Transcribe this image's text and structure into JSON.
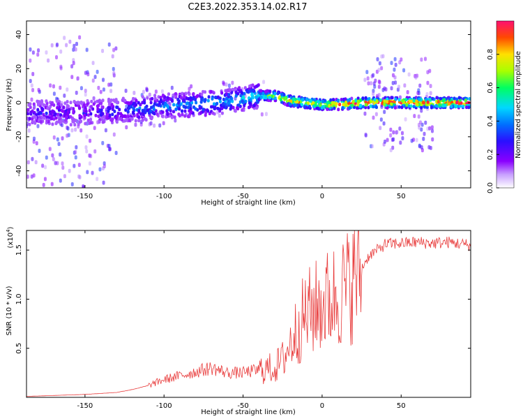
{
  "title": "C2E3.2022.353.14.02.R17",
  "colors": {
    "snr_line": "#e83a3a",
    "colormap": [
      "#ffffff",
      "#8a00ff",
      "#3a00ff",
      "#0050ff",
      "#00d8ff",
      "#00ff60",
      "#a0ff00",
      "#ffe000",
      "#ff5000",
      "#ff1060"
    ]
  },
  "chart_data": [
    {
      "type": "heatmap",
      "xlabel": "Height of straight line (km)",
      "ylabel": "Frequency (Hz)",
      "xlim": [
        -187,
        94
      ],
      "ylim": [
        -50,
        48
      ],
      "xticks": [
        -150,
        -100,
        -50,
        0,
        50
      ],
      "yticks": [
        -40,
        -20,
        0,
        20,
        40
      ],
      "colorbar": {
        "label": "Normalized spectral amplitude",
        "range": [
          0.0,
          1.0
        ],
        "ticks": [
          0.0,
          0.2,
          0.4,
          0.6,
          0.8
        ]
      },
      "trend": {
        "x": [
          -180,
          -150,
          -120,
          -100,
          -80,
          -60,
          -40,
          -30,
          -20,
          0,
          10,
          28,
          70,
          94
        ],
        "freq_hz": [
          -6,
          -6,
          -4,
          -2,
          -1,
          1,
          4,
          4,
          1,
          -1,
          -1,
          0,
          0,
          0
        ],
        "peak_amplitude": [
          0.3,
          0.3,
          0.4,
          0.45,
          0.5,
          0.5,
          0.6,
          0.8,
          0.9,
          0.9,
          0.95,
          1.0,
          1.0,
          1.0
        ]
      }
    },
    {
      "type": "line",
      "xlabel": "Height of straight line (km)",
      "ylabel": "SNR (10 * v/v)",
      "yscale_label": "(x10",
      "yscale_exp": "4",
      "yscale_suffix": ")",
      "xlim": [
        -187,
        94
      ],
      "ylim": [
        0,
        1.7
      ],
      "xticks": [
        -150,
        -100,
        -50,
        0,
        50
      ],
      "yticks": [
        0.5,
        1.0,
        1.5
      ],
      "yticklabels": [
        "0.5",
        "1.0",
        "1.5"
      ],
      "series": [
        {
          "x": [
            -187,
            -150,
            -130,
            -120,
            -110,
            -100,
            -90,
            -80,
            -70,
            -60,
            -50,
            -40,
            -30,
            -25,
            -20,
            -15,
            -10,
            -5,
            0,
            5,
            10,
            15,
            20,
            25,
            30,
            35,
            40,
            50,
            60,
            70,
            80,
            94
          ],
          "values": [
            0.01,
            0.03,
            0.05,
            0.08,
            0.12,
            0.18,
            0.22,
            0.26,
            0.3,
            0.25,
            0.25,
            0.28,
            0.3,
            0.38,
            0.55,
            0.72,
            0.85,
            0.9,
            0.95,
            1.0,
            1.05,
            1.1,
            1.2,
            1.32,
            1.45,
            1.5,
            1.56,
            1.57,
            1.58,
            1.57,
            1.58,
            1.55
          ]
        }
      ]
    }
  ]
}
